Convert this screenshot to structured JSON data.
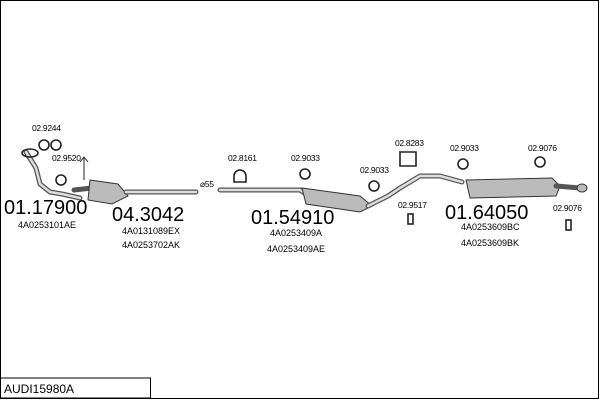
{
  "parts": [
    {
      "number": "01.17900",
      "oe": [
        "4A0253101AE"
      ]
    },
    {
      "number": "04.3042",
      "oe": [
        "4A0131089EX",
        "4A0253702AK"
      ]
    },
    {
      "number": "01.54910",
      "oe": [
        "4A0253409A",
        "4A0253409AE"
      ]
    },
    {
      "number": "01.64050",
      "oe": [
        "4A0253609BC",
        "4A0253609BK"
      ]
    }
  ],
  "fittings": [
    "02.9244",
    "02.9520",
    "02.8161",
    "02.9033",
    "02.9033",
    "02.8283",
    "02.9033",
    "02.9076",
    "02.9517",
    "02.9076",
    "⌀55"
  ],
  "footer": {
    "code": "AUDI15980A"
  }
}
